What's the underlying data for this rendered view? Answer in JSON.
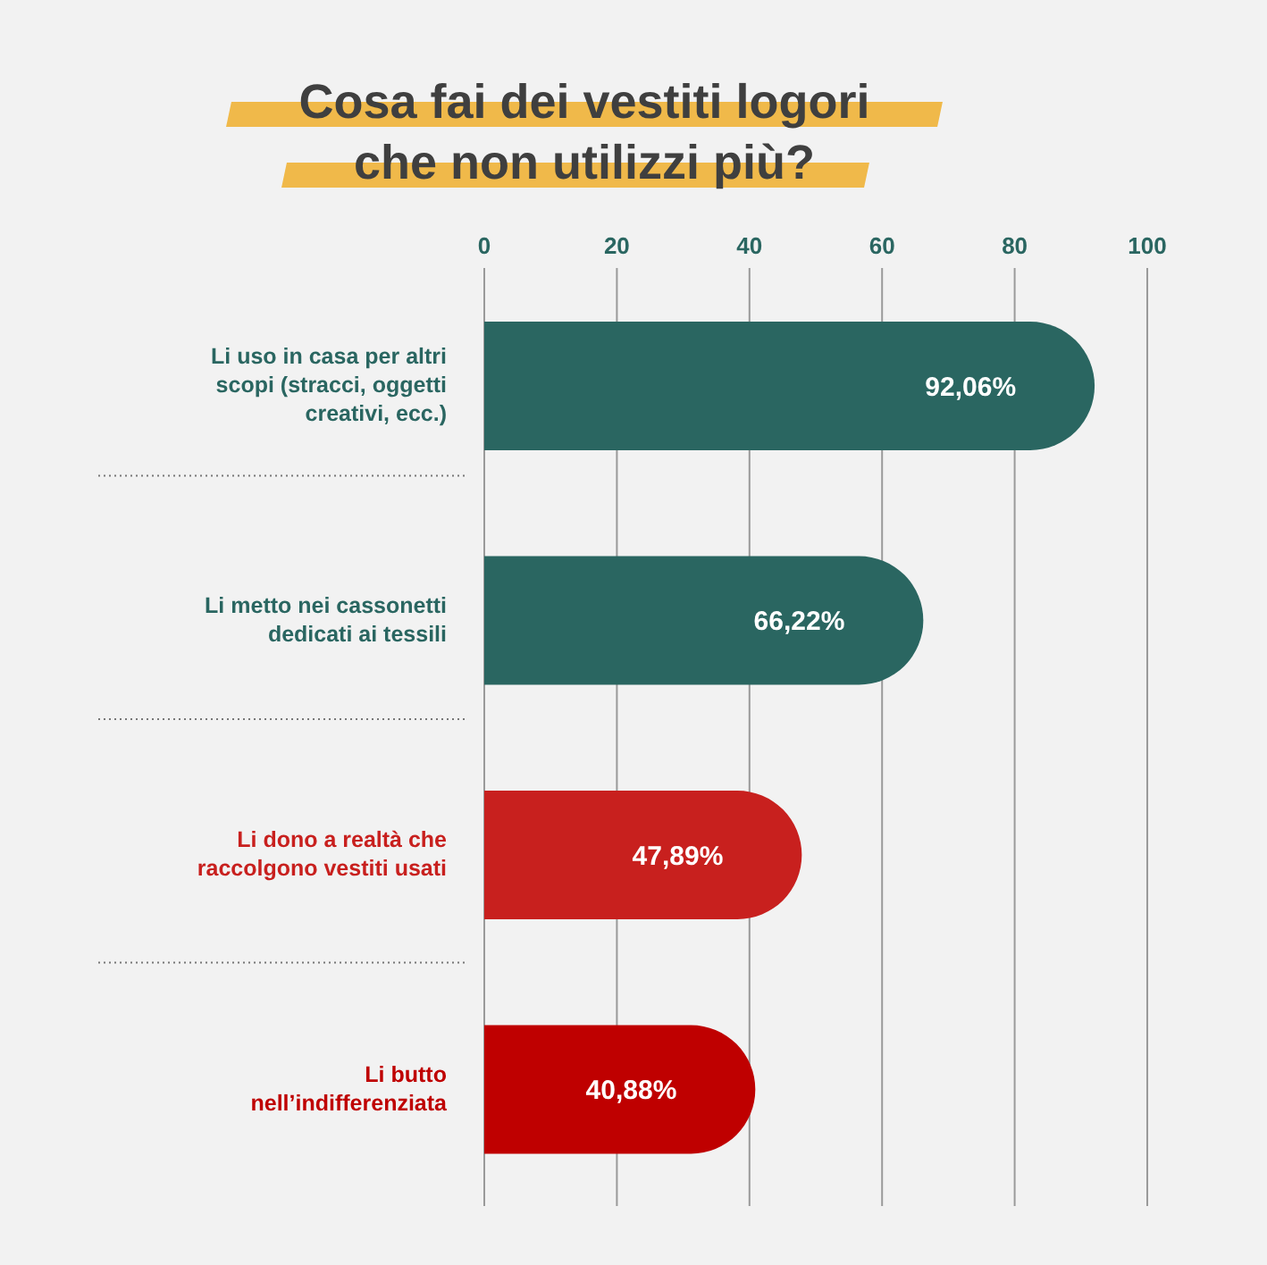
{
  "chart_data": {
    "type": "bar",
    "orientation": "horizontal",
    "title": "Cosa fai dei vestiti logori che non utilizzi più?",
    "categories": [
      "Li uso in casa per altri scopi (stracci, oggetti creativi, ecc.)",
      "Li metto nei cassonetti dedicati ai tessili",
      "Li dono a realtà che raccolgono vestiti usati",
      "Li butto nell’indifferenziata"
    ],
    "values": [
      92.06,
      66.22,
      47.89,
      40.88
    ],
    "colors": [
      "#2a6661",
      "#2a6661",
      "#c8201e",
      "#bf0000"
    ],
    "value_labels": [
      "92,06%",
      "66,22%",
      "47,89%",
      "40,88%"
    ],
    "xlim": [
      0,
      100
    ],
    "xticks": [
      0,
      20,
      40,
      60,
      80,
      100
    ],
    "grid": "x"
  }
}
